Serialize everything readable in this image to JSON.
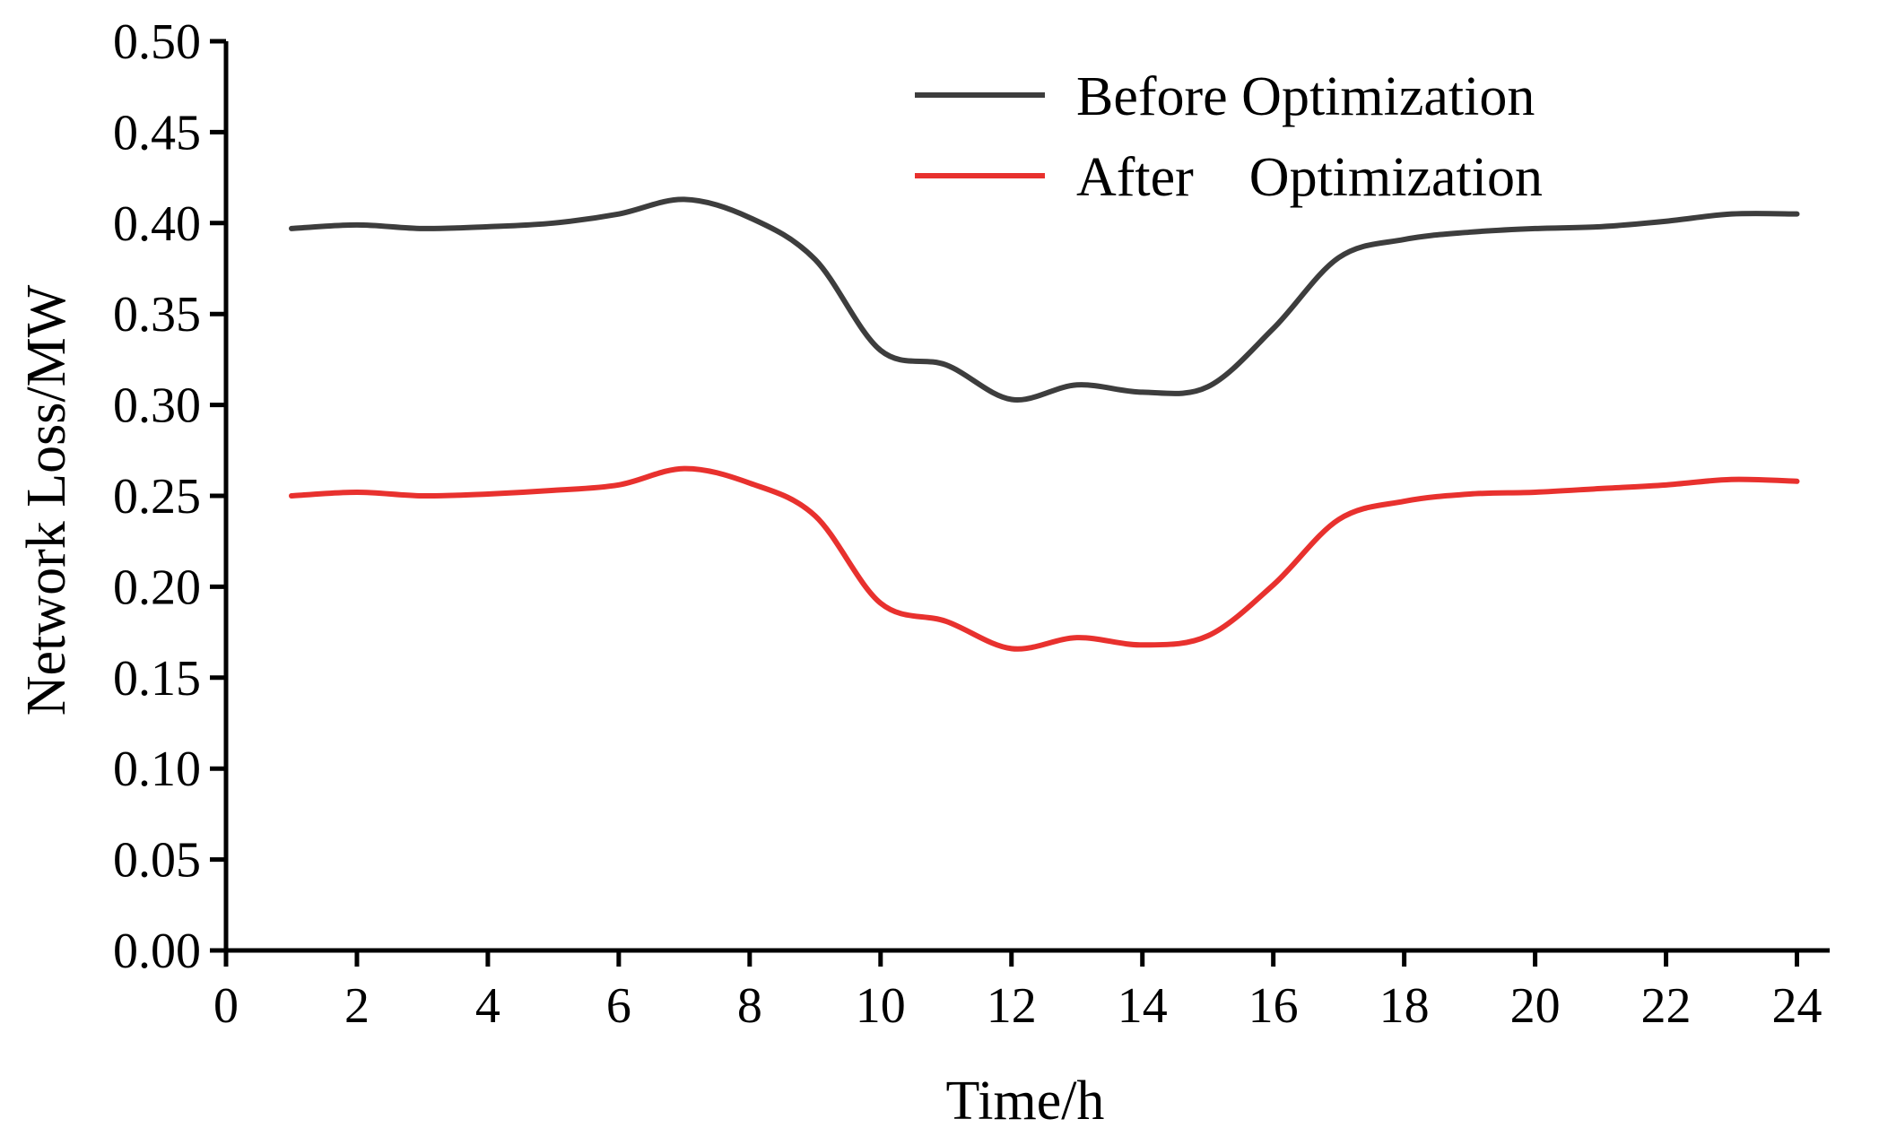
{
  "chart_data": {
    "type": "line",
    "title": "",
    "xlabel": "Time/h",
    "ylabel": "Network Loss/MW",
    "xlim": [
      0,
      24.5
    ],
    "ylim": [
      0,
      0.5
    ],
    "xticks": [
      "0",
      "2",
      "4",
      "6",
      "8",
      "10",
      "12",
      "14",
      "16",
      "18",
      "20",
      "22",
      "24"
    ],
    "xtick_values": [
      0,
      2,
      4,
      6,
      8,
      10,
      12,
      14,
      16,
      18,
      20,
      22,
      24
    ],
    "yticks": [
      "0.00",
      "0.05",
      "0.10",
      "0.15",
      "0.20",
      "0.25",
      "0.30",
      "0.35",
      "0.40",
      "0.45",
      "0.50"
    ],
    "ytick_values": [
      0,
      0.05,
      0.1,
      0.15,
      0.2,
      0.25,
      0.3,
      0.35,
      0.4,
      0.45,
      0.5
    ],
    "grid": false,
    "legend_position": "top-right",
    "x": [
      1,
      2,
      3,
      4,
      5,
      6,
      7,
      8,
      9,
      10,
      11,
      12,
      13,
      14,
      15,
      16,
      17,
      18,
      19,
      20,
      21,
      22,
      23,
      24
    ],
    "series": [
      {
        "name": "Before Optimization",
        "color": "#3d3d3d",
        "values": [
          0.397,
          0.399,
          0.397,
          0.398,
          0.4,
          0.405,
          0.413,
          0.403,
          0.38,
          0.33,
          0.322,
          0.303,
          0.311,
          0.307,
          0.31,
          0.342,
          0.381,
          0.391,
          0.395,
          0.397,
          0.398,
          0.401,
          0.405,
          0.405
        ]
      },
      {
        "name": "After Optimization",
        "color": "#e8312e",
        "values": [
          0.25,
          0.252,
          0.25,
          0.251,
          0.253,
          0.256,
          0.265,
          0.257,
          0.239,
          0.191,
          0.181,
          0.166,
          0.172,
          0.168,
          0.173,
          0.201,
          0.237,
          0.247,
          0.251,
          0.252,
          0.254,
          0.256,
          0.259,
          0.258
        ]
      }
    ]
  },
  "legend": {
    "before_label": "Before Optimization",
    "after_label": "After    Optimization"
  }
}
